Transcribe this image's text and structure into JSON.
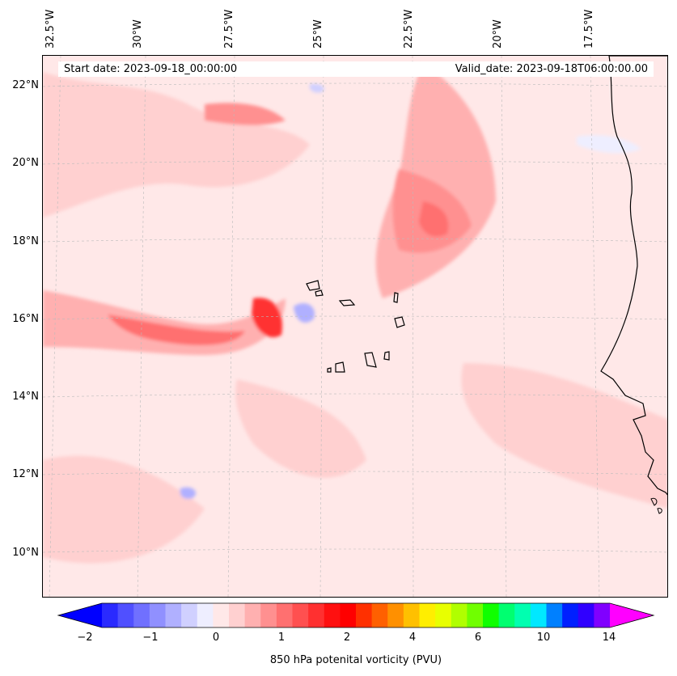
{
  "header": {
    "start_date": "Start date: 2023-09-18_00:00:00",
    "valid_date": "Valid_date: 2023-09-18T06:00:00.00"
  },
  "axes": {
    "lon_labels": [
      "32.5°W",
      "30°W",
      "27.5°W",
      "25°W",
      "22.5°W",
      "20°W",
      "17.5°W"
    ],
    "lat_labels": [
      "22°N",
      "20°N",
      "18°N",
      "16°N",
      "14°N",
      "12°N",
      "10°N"
    ]
  },
  "colorbar": {
    "label": "850 hPa potenital vorticity (PVU)",
    "ticks": [
      "−2",
      "−1",
      "0",
      "1",
      "2",
      "4",
      "6",
      "10",
      "14"
    ],
    "colors": [
      "#0000ff",
      "#2a2aff",
      "#5050ff",
      "#7070ff",
      "#9090ff",
      "#b0b0ff",
      "#d0d0ff",
      "#eeeeff",
      "#ffe8e8",
      "#ffd0d0",
      "#ffb0b0",
      "#ff9090",
      "#ff7070",
      "#ff5050",
      "#ff3030",
      "#ff1010",
      "#ff0000",
      "#ff3000",
      "#ff6000",
      "#ff9000",
      "#ffc000",
      "#ffee00",
      "#e8ff00",
      "#b0ff00",
      "#70ff00",
      "#10ff00",
      "#00ff70",
      "#00ffb0",
      "#00e8ff",
      "#0080ff",
      "#0020ff",
      "#3000ff",
      "#8000ff",
      "#ff00ff"
    ]
  },
  "map": {
    "background_color": "#ffe8e8",
    "coastline_color": "#000000"
  }
}
